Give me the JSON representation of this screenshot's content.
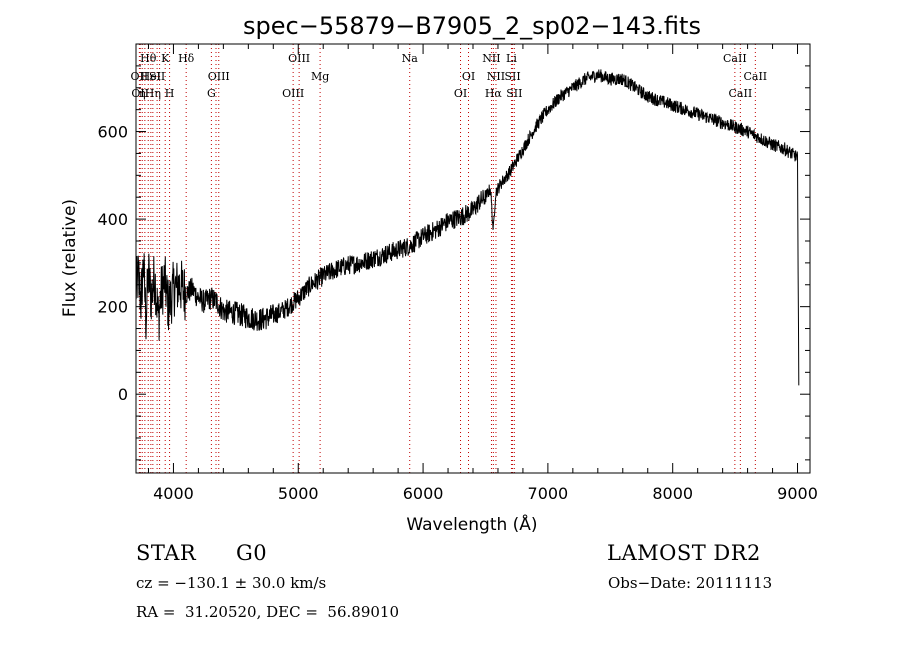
{
  "chart_data": {
    "type": "line",
    "title": "spec−55879−B7905_2_sp02−143.fits",
    "xlabel": "Wavelength (Å)",
    "ylabel": "Flux (relative)",
    "xlim": [
      3700,
      9100
    ],
    "ylim": [
      -180,
      800
    ],
    "xticks": [
      4000,
      5000,
      6000,
      7000,
      8000,
      9000
    ],
    "yticks": [
      0,
      200,
      400,
      600
    ],
    "grid": false,
    "line_color": "#000000",
    "marker_color": "#c00000",
    "series": [
      {
        "x": [
          3700,
          3720,
          3740,
          3760,
          3780,
          3800,
          3820,
          3850,
          3880,
          3900,
          3930,
          3960,
          4000,
          4050,
          4100,
          4150,
          4200,
          4250,
          4300,
          4350,
          4400,
          4500,
          4600,
          4700,
          4800,
          4900,
          5000,
          5100,
          5200,
          5300,
          5400,
          5500,
          5600,
          5700,
          5800,
          5900,
          6000,
          6100,
          6200,
          6300,
          6400,
          6450,
          6500,
          6540,
          6563,
          6580,
          6620,
          6700,
          6800,
          6900,
          7000,
          7100,
          7200,
          7300,
          7400,
          7500,
          7600,
          7700,
          7800,
          7900,
          8000,
          8100,
          8200,
          8300,
          8400,
          8500,
          8600,
          8700,
          8800,
          8900,
          8950,
          8980,
          9000,
          9010
        ],
        "y": [
          240,
          270,
          210,
          300,
          170,
          280,
          220,
          270,
          170,
          230,
          260,
          200,
          240,
          250,
          230,
          240,
          220,
          210,
          220,
          210,
          190,
          185,
          175,
          170,
          180,
          195,
          220,
          250,
          270,
          285,
          295,
          300,
          310,
          320,
          330,
          340,
          360,
          375,
          395,
          405,
          420,
          440,
          450,
          470,
          370,
          460,
          480,
          510,
          560,
          610,
          650,
          680,
          700,
          720,
          730,
          720,
          720,
          700,
          680,
          670,
          660,
          650,
          640,
          630,
          620,
          610,
          600,
          585,
          570,
          560,
          550,
          545,
          540,
          20
        ]
      }
    ],
    "line_markers": [
      {
        "wave": 3727,
        "label": "OII",
        "row": 1,
        "label_side": "center"
      },
      {
        "wave": 3734,
        "label": "OII",
        "row": 2,
        "label_side": "center"
      },
      {
        "wave": 3750,
        "label": "η",
        "row": 2,
        "label_side": "center"
      },
      {
        "wave": 3771,
        "label": "",
        "row": 0,
        "label_side": "center"
      },
      {
        "wave": 3798,
        "label": "Hθ",
        "row": 0,
        "label_side": "center"
      },
      {
        "wave": 3819,
        "label": "HeI",
        "row": 1,
        "label_side": "center"
      },
      {
        "wave": 3835,
        "label": "Hη",
        "row": 2,
        "label_side": "center"
      },
      {
        "wave": 3869,
        "label": "SII",
        "row": 1,
        "label_side": "center"
      },
      {
        "wave": 3889,
        "label": "",
        "row": 0,
        "label_side": "center"
      },
      {
        "wave": 3934,
        "label": "K",
        "row": 0,
        "label_side": "center"
      },
      {
        "wave": 3969,
        "label": "H",
        "row": 2,
        "label_side": "center"
      },
      {
        "wave": 4102,
        "label": "Hδ",
        "row": 0,
        "label_side": "center"
      },
      {
        "wave": 4304,
        "label": "G",
        "row": 2,
        "label_side": "center"
      },
      {
        "wave": 4341,
        "label": "",
        "row": 0,
        "label_side": "center"
      },
      {
        "wave": 4363,
        "label": "OIII",
        "row": 1,
        "label_side": "center"
      },
      {
        "wave": 4959,
        "label": "OIII",
        "row": 2,
        "label_side": "center"
      },
      {
        "wave": 5007,
        "label": "OIII",
        "row": 0,
        "label_side": "center"
      },
      {
        "wave": 5175,
        "label": "Mg",
        "row": 1,
        "label_side": "center"
      },
      {
        "wave": 5893,
        "label": "Na",
        "row": 0,
        "label_side": "center"
      },
      {
        "wave": 6300,
        "label": "OI",
        "row": 2,
        "label_side": "center"
      },
      {
        "wave": 6364,
        "label": "OI",
        "row": 1,
        "label_side": "center"
      },
      {
        "wave": 6548,
        "label": "NII",
        "row": 0,
        "label_side": "center"
      },
      {
        "wave": 6563,
        "label": "Hα",
        "row": 2,
        "label_side": "center"
      },
      {
        "wave": 6584,
        "label": "NII",
        "row": 1,
        "label_side": "center"
      },
      {
        "wave": 6708,
        "label": "Li",
        "row": 0,
        "label_side": "center"
      },
      {
        "wave": 6717,
        "label": "SII",
        "row": 1,
        "label_side": "center"
      },
      {
        "wave": 6731,
        "label": "SII",
        "row": 2,
        "label_side": "center"
      },
      {
        "wave": 8498,
        "label": "CaII",
        "row": 0,
        "label_side": "center"
      },
      {
        "wave": 8542,
        "label": "CaII",
        "row": 2,
        "label_side": "center"
      },
      {
        "wave": 8662,
        "label": "CaII",
        "row": 1,
        "label_side": "center"
      }
    ]
  },
  "footer": {
    "object_class": "STAR",
    "subclass": "G0",
    "survey": "LAMOST DR2",
    "cz": "cz = −130.1 ± 30.0 km/s",
    "obs_date": "Obs−Date: 20111113",
    "coords": "RA =  31.20520, DEC =  56.89010"
  }
}
